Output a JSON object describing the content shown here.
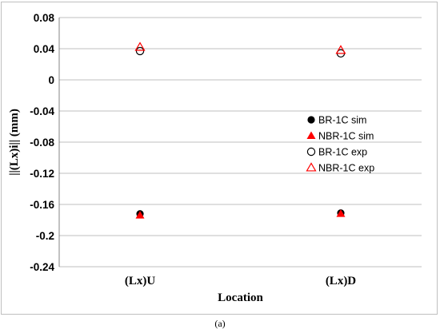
{
  "chart_data": {
    "type": "scatter",
    "title": "",
    "xlabel": "Location",
    "ylabel": "||(Lx)i||  (mm)",
    "categories": [
      "(Lx)U",
      "(Lx)D"
    ],
    "ylim": [
      -0.24,
      0.08
    ],
    "yticks": [
      0.08,
      0.04,
      0,
      -0.04,
      -0.08,
      -0.12,
      -0.16,
      -0.2,
      -0.24
    ],
    "ytick_labels": [
      "0.08",
      "0.04",
      "0",
      "-0.04",
      "-0.08",
      "-0.12",
      "-0.16",
      "-0.2",
      "-0.24"
    ],
    "grid": "horizontal",
    "legend_position": "right",
    "series": [
      {
        "name": "BR-1C sim",
        "marker": "filled-circle",
        "color": "#000000",
        "values": [
          -0.172,
          -0.171
        ]
      },
      {
        "name": "NBR-1C sim",
        "marker": "filled-triangle",
        "color": "#ff0000",
        "values": [
          -0.174,
          -0.172
        ]
      },
      {
        "name": "BR-1C exp",
        "marker": "open-circle",
        "color": "#000000",
        "values": [
          0.037,
          0.034
        ]
      },
      {
        "name": "NBR-1C exp",
        "marker": "open-triangle",
        "color": "#ff0000",
        "values": [
          0.042,
          0.038
        ]
      }
    ]
  },
  "caption": "(a)"
}
